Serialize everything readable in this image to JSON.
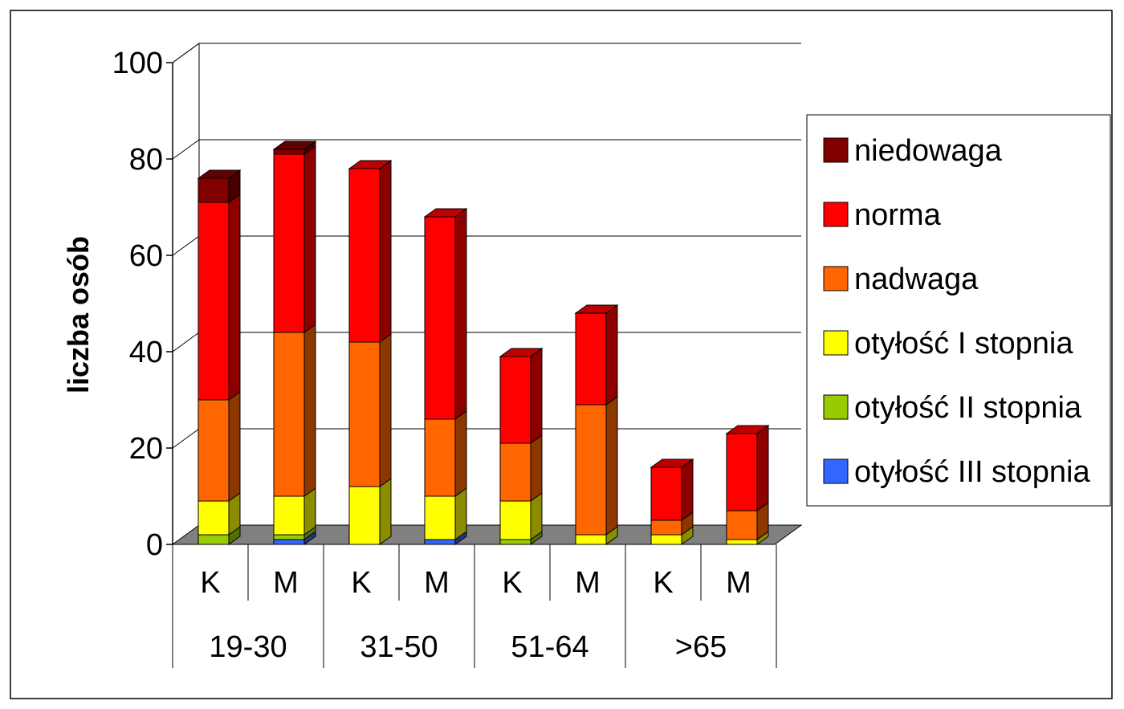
{
  "chart_data": {
    "type": "bar",
    "stacked": true,
    "three_d": true,
    "title": "",
    "xlabel": "",
    "ylabel": "liczba osób",
    "ylim": [
      0,
      100
    ],
    "yticks": [
      0,
      20,
      40,
      60,
      80,
      100
    ],
    "grid": true,
    "legend_position": "right",
    "categories": [
      "K",
      "M",
      "K",
      "M",
      "K",
      "M",
      "K",
      "M"
    ],
    "groups": [
      {
        "label": "19-30",
        "categories": [
          "K",
          "M"
        ]
      },
      {
        "label": "31-50",
        "categories": [
          "K",
          "M"
        ]
      },
      {
        "label": "51-64",
        "categories": [
          "K",
          "M"
        ]
      },
      {
        "label": ">65",
        "categories": [
          "K",
          "M"
        ]
      }
    ],
    "series": [
      {
        "name": "otyłość III stopnia",
        "color": "#3366ff",
        "values": [
          0,
          1,
          0,
          1,
          0,
          0,
          0,
          0
        ]
      },
      {
        "name": "otyłość II stopnia",
        "color": "#99cc00",
        "values": [
          2,
          1,
          0,
          0,
          1,
          0,
          0,
          0
        ]
      },
      {
        "name": "otyłość I stopnia",
        "color": "#ffff00",
        "values": [
          7,
          8,
          12,
          9,
          8,
          2,
          2,
          1
        ]
      },
      {
        "name": "nadwaga",
        "color": "#ff6600",
        "values": [
          21,
          34,
          30,
          16,
          12,
          27,
          3,
          6
        ]
      },
      {
        "name": "norma",
        "color": "#ff0000",
        "values": [
          41,
          37,
          36,
          42,
          18,
          19,
          11,
          16
        ]
      },
      {
        "name": "niedowaga",
        "color": "#800000",
        "values": [
          5,
          1,
          0,
          0,
          0,
          0,
          0,
          0
        ]
      }
    ],
    "legend_order": [
      "niedowaga",
      "norma",
      "nadwaga",
      "otyłość I stopnia",
      "otyłość II stopnia",
      "otyłość III stopnia"
    ]
  }
}
